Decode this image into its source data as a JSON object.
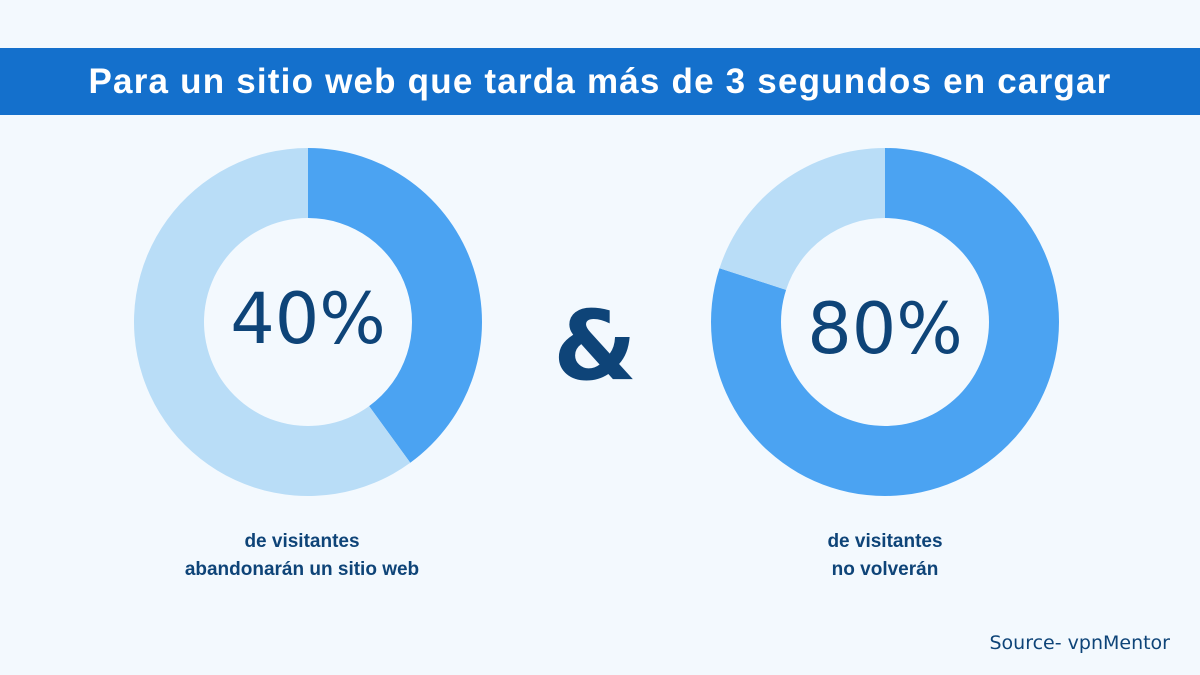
{
  "title": "Para un sitio web que tarda más de 3 segundos en cargar",
  "connector": "&",
  "source": "Source- vpnMentor",
  "colors": {
    "banner": "#1470cc",
    "filled": "#4ba3f2",
    "remainder": "#b9ddf7",
    "text": "#0e4478",
    "background": "#f3f9fe"
  },
  "chart_data": [
    {
      "type": "pie",
      "variant": "donut",
      "values": [
        40,
        60
      ],
      "center_label": "40%",
      "caption_line1": "de visitantes",
      "caption_line2": "abandonarán un sitio web"
    },
    {
      "type": "pie",
      "variant": "donut",
      "values": [
        80,
        20
      ],
      "center_label": "80%",
      "caption_line1": "de visitantes",
      "caption_line2": "no volverán"
    }
  ]
}
